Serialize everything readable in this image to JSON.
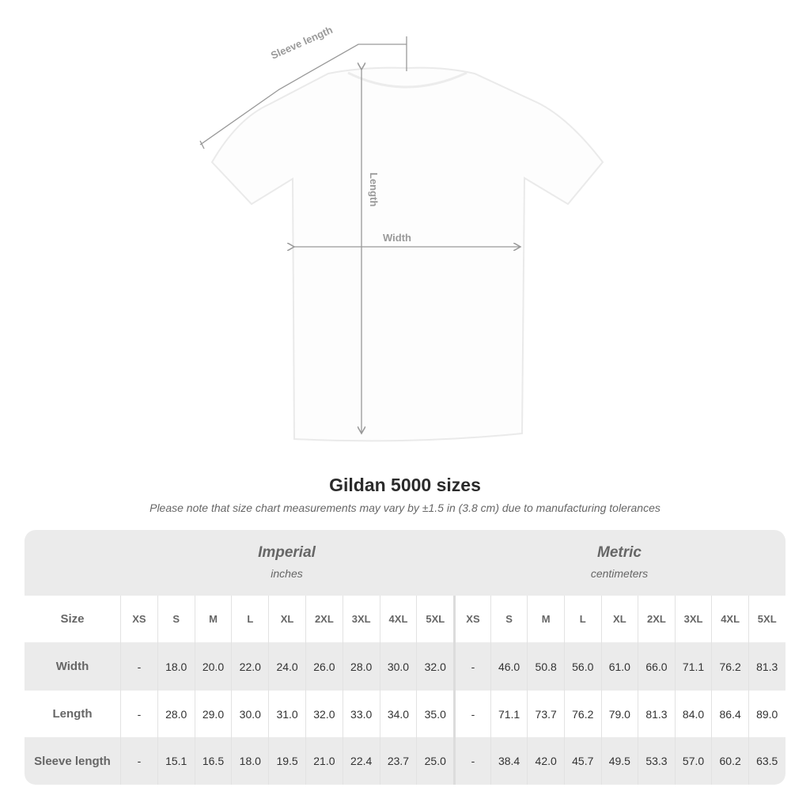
{
  "diagram": {
    "labels": {
      "sleeve": "Sleeve length",
      "length": "Length",
      "width": "Width"
    }
  },
  "title": "Gildan 5000 sizes",
  "note": "Please note that size chart measurements may vary by ±1.5 in (3.8 cm) due to manufacturing tolerances",
  "table": {
    "imperial": {
      "name": "Imperial",
      "unit": "inches"
    },
    "metric": {
      "name": "Metric",
      "unit": "centimeters"
    },
    "size_label": "Size",
    "sizes": [
      "XS",
      "S",
      "M",
      "L",
      "XL",
      "2XL",
      "3XL",
      "4XL",
      "5XL"
    ],
    "rows": [
      {
        "label": "Width",
        "imperial": [
          "-",
          "18.0",
          "20.0",
          "22.0",
          "24.0",
          "26.0",
          "28.0",
          "30.0",
          "32.0"
        ],
        "metric": [
          "-",
          "46.0",
          "50.8",
          "56.0",
          "61.0",
          "66.0",
          "71.1",
          "76.2",
          "81.3"
        ]
      },
      {
        "label": "Length",
        "imperial": [
          "-",
          "28.0",
          "29.0",
          "30.0",
          "31.0",
          "32.0",
          "33.0",
          "34.0",
          "35.0"
        ],
        "metric": [
          "-",
          "71.1",
          "73.7",
          "76.2",
          "79.0",
          "81.3",
          "84.0",
          "86.4",
          "89.0"
        ]
      },
      {
        "label": "Sleeve length",
        "imperial": [
          "-",
          "15.1",
          "16.5",
          "18.0",
          "19.5",
          "21.0",
          "22.4",
          "23.7",
          "25.0"
        ],
        "metric": [
          "-",
          "38.4",
          "42.0",
          "45.7",
          "49.5",
          "53.3",
          "57.0",
          "60.2",
          "63.5"
        ]
      }
    ]
  }
}
